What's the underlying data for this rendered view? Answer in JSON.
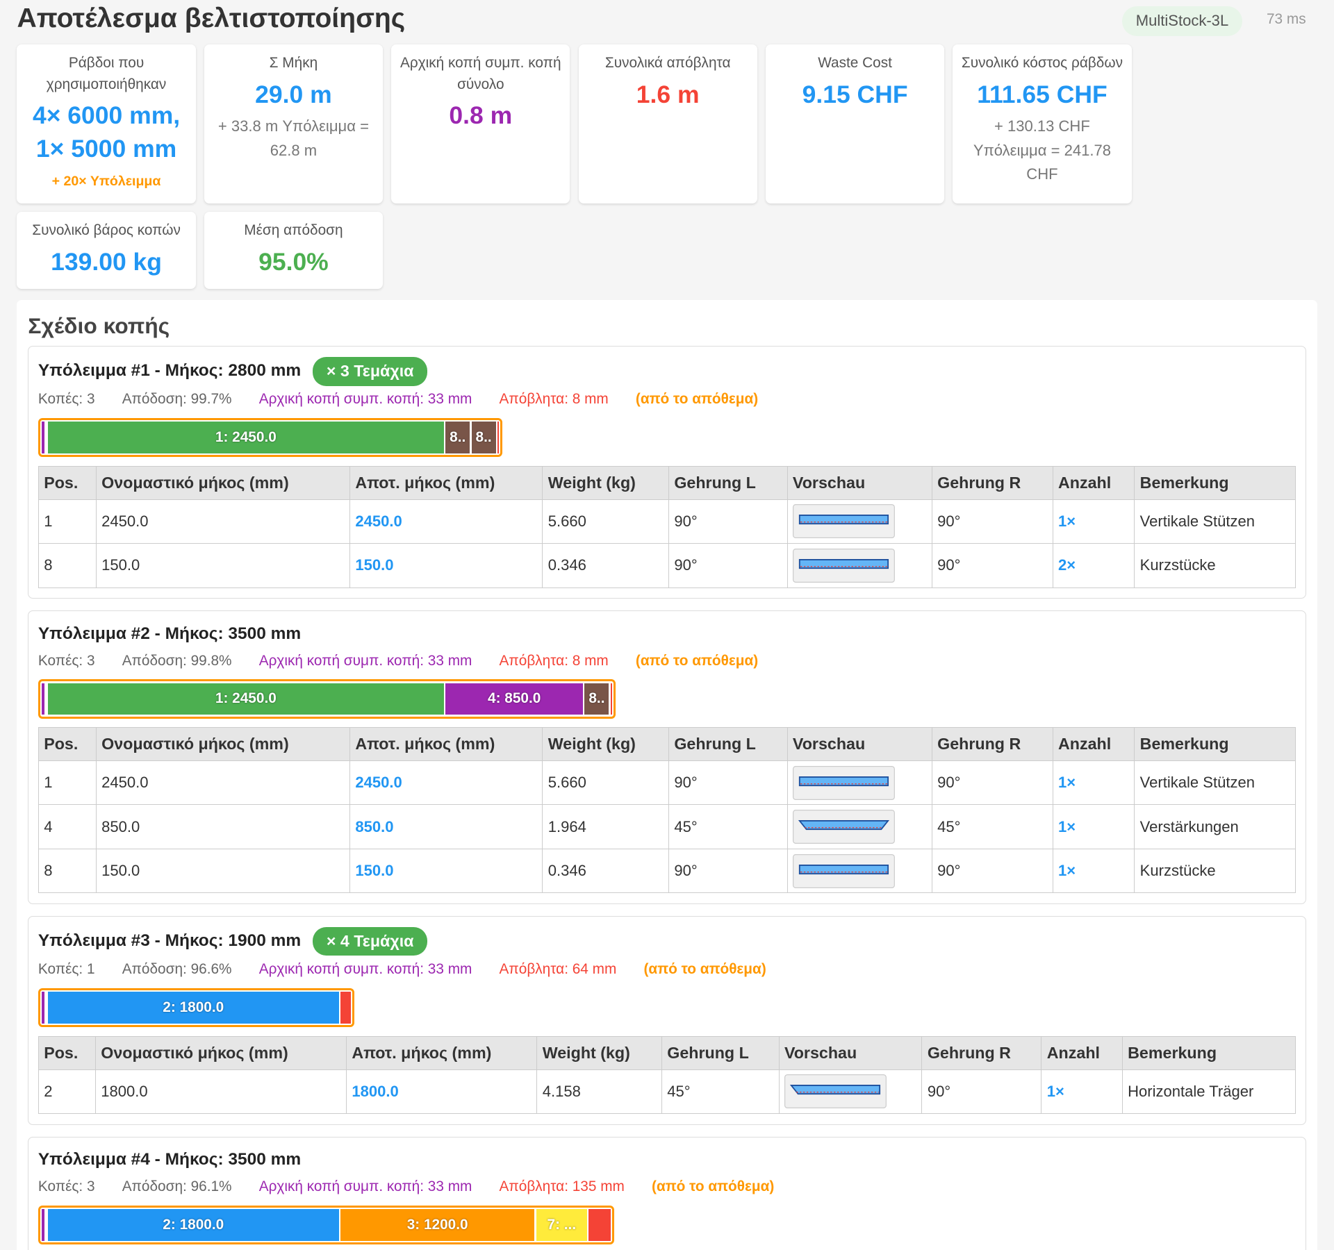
{
  "header": {
    "title": "Αποτέλεσμα βελτιστοποίησης",
    "badge": "MultiStock-3L",
    "time": "73 ms"
  },
  "cards": [
    {
      "label": "Ράβδοι που χρησιμοποιήθηκαν",
      "value": "4× 6000 mm, 1× 5000 mm",
      "color": "#2196f3",
      "note": "+ 20× Υπόλειμμα",
      "note_color": "#ff9800"
    },
    {
      "label": "Σ Μήκη",
      "value": "29.0 m",
      "color": "#2196f3",
      "note": "+ 33.8 m Υπόλειμμα = 62.8 m"
    },
    {
      "label": "Αρχική κοπή συμπ. κοπή σύνολο",
      "value": "0.8 m",
      "color": "#9c27b0"
    },
    {
      "label": "Συνολικά απόβλητα",
      "value": "1.6 m",
      "color": "#f44336"
    },
    {
      "label": "Waste Cost",
      "value": "9.15 CHF",
      "color": "#2196f3"
    },
    {
      "label": "Συνολικό κόστος ράβδων",
      "value": "111.65 CHF",
      "color": "#2196f3",
      "note": "+ 130.13 CHF Υπόλειμμα = 241.78 CHF"
    },
    {
      "label": "Συνολικό βάρος κοπών",
      "value": "139.00 kg",
      "color": "#2196f3"
    },
    {
      "label": "Μέση απόδοση",
      "value": "95.0%",
      "color": "#4caf50"
    }
  ],
  "plan": {
    "title": "Σχέδιο κοπής",
    "columns": [
      "Pos.",
      "Ονομαστικό μήκος (mm)",
      "Αποτ. μήκος (mm)",
      "Weight (kg)",
      "Gehrung L",
      "Vorschau",
      "Gehrung R",
      "Anzahl",
      "Bemerkung"
    ],
    "groups": [
      {
        "title": "Υπόλειμμα #1 - Μήκος: 2800 mm",
        "badge": "× 3 Τεμάχια",
        "stats": [
          "Κοπές: 3",
          "Απόδοση: 99.7%",
          "Αρχική κοπή συμπ. κοπή: 33 mm",
          "Απόβλητα: 8 mm",
          "(από το απόθεμα)"
        ],
        "segments": [
          {
            "label": "1: 2450.0",
            "length": 2450,
            "color": "#4caf50"
          },
          {
            "label": "8..",
            "length": 150,
            "color": "#795548"
          },
          {
            "label": "8..",
            "length": 150,
            "color": "#795548"
          },
          {
            "length": 8,
            "color": "#f44336"
          }
        ],
        "rows": [
          {
            "pos": "1",
            "nominal": "2450.0",
            "actual": "2450.0",
            "weight": "5.660",
            "gehrung_l": "90°",
            "gehrung_r": "90°",
            "anzahl": "1×",
            "note": "Vertikale Stützen"
          },
          {
            "pos": "8",
            "nominal": "150.0",
            "actual": "150.0",
            "weight": "0.346",
            "gehrung_l": "90°",
            "gehrung_r": "90°",
            "anzahl": "2×",
            "note": "Kurzstücke"
          }
        ]
      },
      {
        "title": "Υπόλειμμα #2 - Μήκος: 3500 mm",
        "stats": [
          "Κοπές: 3",
          "Απόδοση: 99.8%",
          "Αρχική κοπή συμπ. κοπή: 33 mm",
          "Απόβλητα: 8 mm",
          "(από το απόθεμα)"
        ],
        "segments": [
          {
            "label": "1: 2450.0",
            "length": 2450,
            "color": "#4caf50"
          },
          {
            "label": "4: 850.0",
            "length": 850,
            "color": "#9c27b0"
          },
          {
            "label": "8..",
            "length": 150,
            "color": "#795548"
          },
          {
            "length": 8,
            "color": "#f44336"
          }
        ],
        "rows": [
          {
            "pos": "1",
            "nominal": "2450.0",
            "actual": "2450.0",
            "weight": "5.660",
            "gehrung_l": "90°",
            "gehrung_r": "90°",
            "anzahl": "1×",
            "note": "Vertikale Stützen"
          },
          {
            "pos": "4",
            "nominal": "850.0",
            "actual": "850.0",
            "weight": "1.964",
            "gehrung_l": "45°",
            "gehrung_r": "45°",
            "anzahl": "1×",
            "note": "Verstärkungen"
          },
          {
            "pos": "8",
            "nominal": "150.0",
            "actual": "150.0",
            "weight": "0.346",
            "gehrung_l": "90°",
            "gehrung_r": "90°",
            "anzahl": "1×",
            "note": "Kurzstücke"
          }
        ]
      },
      {
        "title": "Υπόλειμμα #3 - Μήκος: 1900 mm",
        "badge": "× 4 Τεμάχια",
        "stats": [
          "Κοπές: 1",
          "Απόδοση: 96.6%",
          "Αρχική κοπή συμπ. κοπή: 33 mm",
          "Απόβλητα: 64 mm",
          "(από το απόθεμα)"
        ],
        "segments": [
          {
            "label": "2: 1800.0",
            "length": 1800,
            "color": "#2196f3"
          },
          {
            "length": 64,
            "color": "#f44336"
          }
        ],
        "rows": [
          {
            "pos": "2",
            "nominal": "1800.0",
            "actual": "1800.0",
            "weight": "4.158",
            "gehrung_l": "45°",
            "gehrung_r": "90°",
            "anzahl": "1×",
            "note": "Horizontale Träger"
          }
        ]
      },
      {
        "title": "Υπόλειμμα #4 - Μήκος: 3500 mm",
        "stats": [
          "Κοπές: 3",
          "Απόδοση: 96.1%",
          "Αρχική κοπή συμπ. κοπή: 33 mm",
          "Απόβλητα: 135 mm",
          "(από το απόθεμα)"
        ],
        "segments": [
          {
            "label": "2: 1800.0",
            "length": 1800,
            "color": "#2196f3"
          },
          {
            "label": "3: 1200.0",
            "length": 1200,
            "color": "#ff9800"
          },
          {
            "label": "7: ...",
            "length": 315,
            "color": "#ffeb3b"
          },
          {
            "length": 135,
            "color": "#f44336"
          }
        ],
        "rows": []
      }
    ]
  }
}
